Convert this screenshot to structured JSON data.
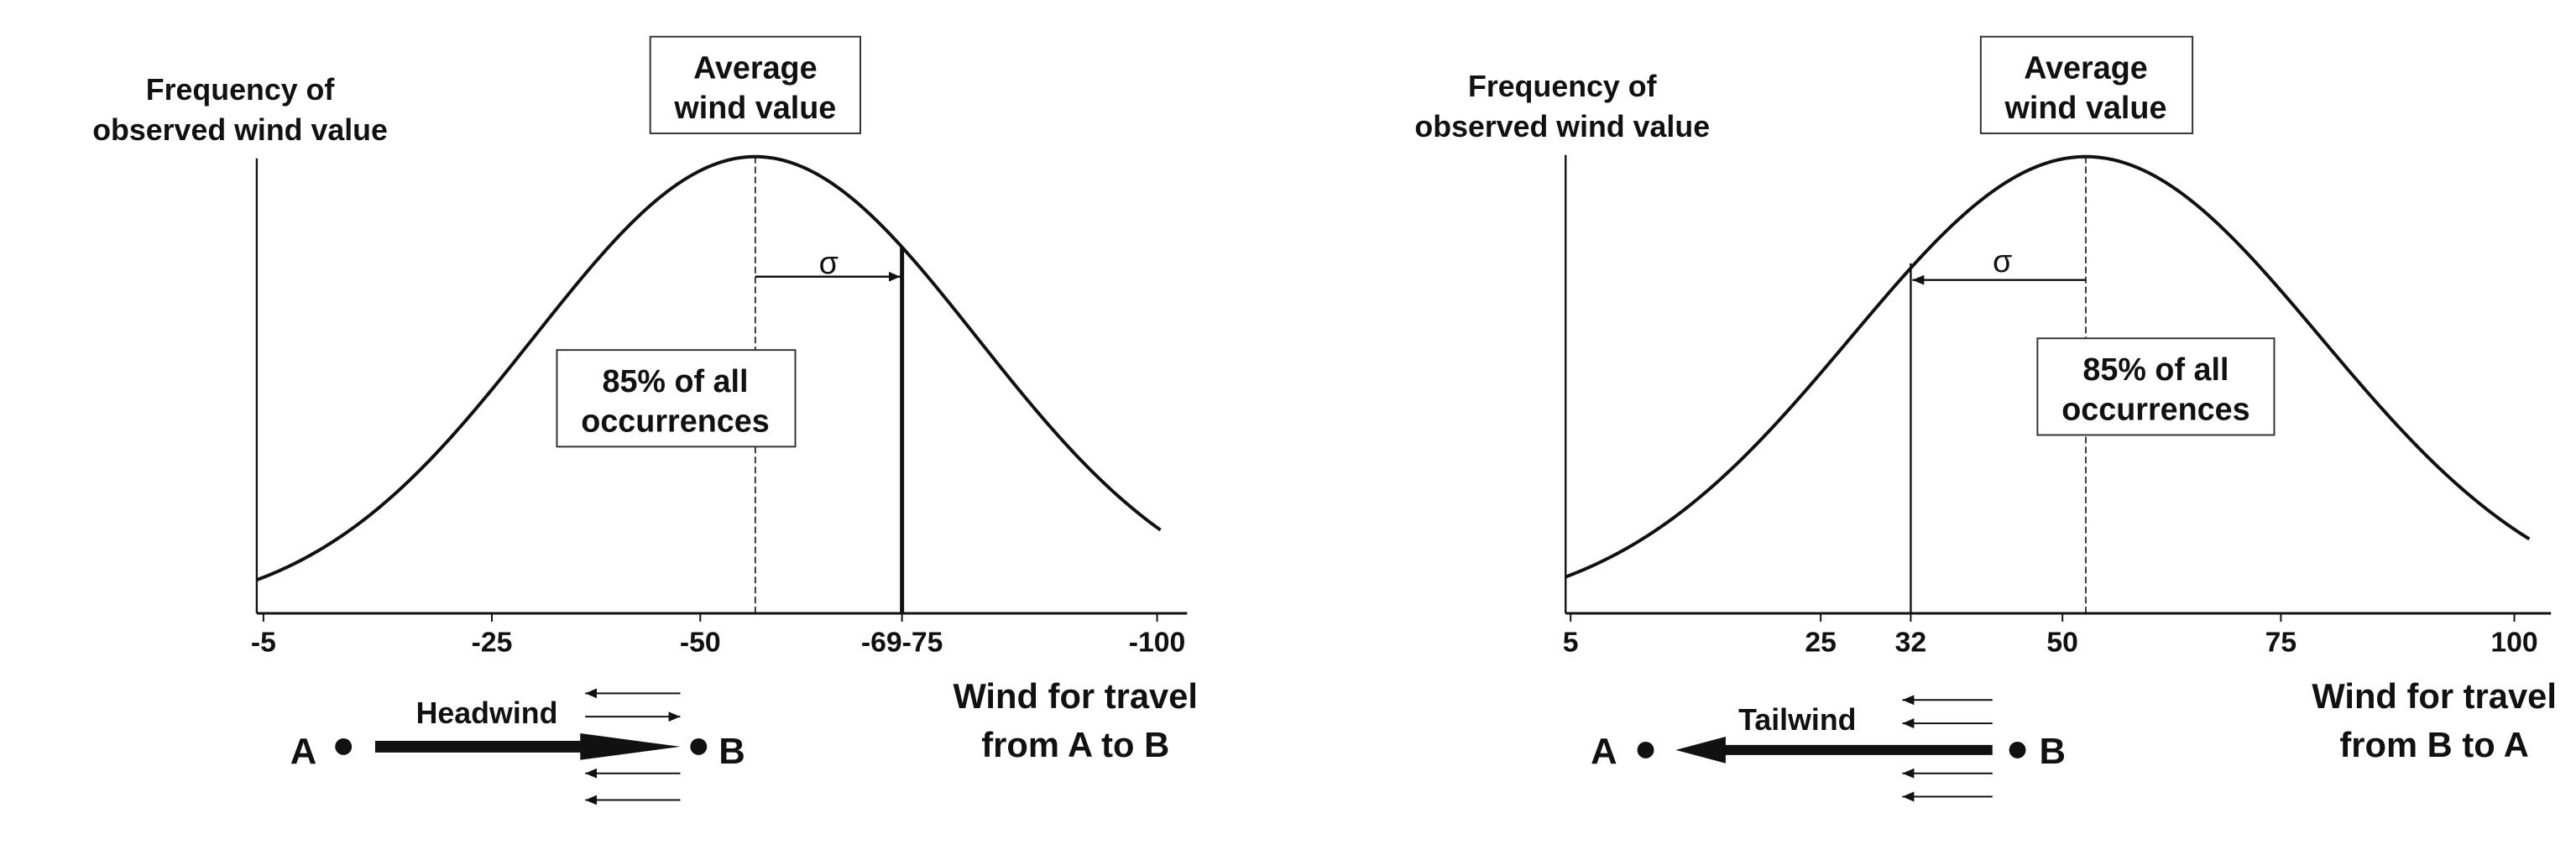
{
  "panels": [
    {
      "y_label": [
        "Frequency of",
        "observed wind value"
      ],
      "mean_label": [
        "Average",
        "wind value"
      ],
      "sigma": "σ",
      "percent_label": [
        "85% of all",
        "occurrences"
      ],
      "x_ticks": [
        "-5",
        "-25",
        "-50",
        "-69-75",
        "-100"
      ],
      "x_label": [
        "Wind for travel",
        "from A to B"
      ],
      "wind_label": "Headwind",
      "point_a": "A",
      "point_b": "B"
    },
    {
      "y_label": [
        "Frequency of",
        "observed wind value"
      ],
      "mean_label": [
        "Average",
        "wind value"
      ],
      "sigma": "σ",
      "percent_label": [
        "85% of all",
        "occurrences"
      ],
      "x_ticks": [
        "5",
        "25",
        "32",
        "50",
        "75",
        "100"
      ],
      "x_label": [
        "Wind for travel",
        "from B to A"
      ],
      "wind_label": "Tailwind",
      "point_a": "A",
      "point_b": "B"
    }
  ]
}
